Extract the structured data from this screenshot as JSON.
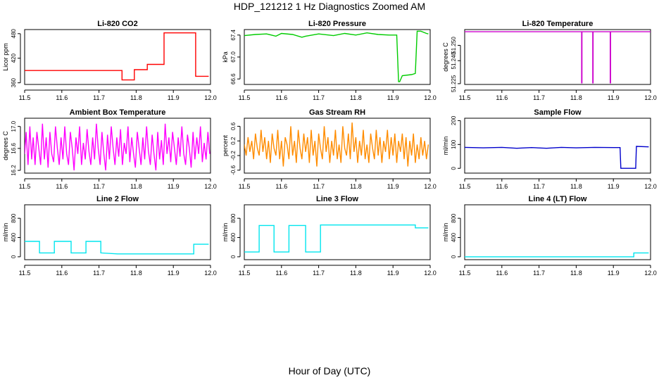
{
  "figure": {
    "title": "HDP_121212  1 Hz Diagnostics Zoomed AM",
    "xlabel": "Hour of Day (UTC)"
  },
  "chart_data": [
    {
      "type": "line",
      "title": "Li-820 CO2",
      "ylabel": "Licor ppm",
      "color": "#ff0000",
      "xlim": [
        11.5,
        12.0
      ],
      "ylim": [
        356,
        490
      ],
      "yticks": [
        "360",
        "420",
        "480"
      ],
      "ytick_values": [
        360,
        420,
        480
      ],
      "xticks": [
        "11.5",
        "11.6",
        "11.7",
        "11.8",
        "11.9",
        "12.0"
      ],
      "xtick_values": [
        11.5,
        11.6,
        11.7,
        11.8,
        11.9,
        12.0
      ],
      "series": [
        {
          "x": [
            11.5,
            11.762,
            11.762,
            11.795,
            11.795,
            11.83,
            11.83,
            11.875,
            11.875,
            11.96,
            11.96,
            11.995
          ],
          "y": [
            390,
            390,
            367,
            367,
            392,
            392,
            405,
            405,
            482,
            482,
            376,
            376
          ]
        }
      ]
    },
    {
      "type": "line",
      "title": "Li-820 Pressure",
      "ylabel": "kPa",
      "color": "#00cc00",
      "xlim": [
        11.5,
        12.0
      ],
      "ylim": [
        66.5,
        67.5
      ],
      "yticks": [
        "66.6",
        "67.0",
        "67.4"
      ],
      "ytick_values": [
        66.6,
        67.0,
        67.4
      ],
      "xticks": [
        "11.5",
        "11.6",
        "11.7",
        "11.8",
        "11.9",
        "12.0"
      ],
      "xtick_values": [
        11.5,
        11.6,
        11.7,
        11.8,
        11.9,
        12.0
      ],
      "series": [
        {
          "x": [
            11.5,
            11.53,
            11.56,
            11.585,
            11.6,
            11.63,
            11.655,
            11.665,
            11.7,
            11.74,
            11.77,
            11.8,
            11.83,
            11.86,
            11.89,
            11.91,
            11.915,
            11.918,
            11.925,
            11.95,
            11.96,
            11.965,
            11.975,
            11.99,
            11.995
          ],
          "y": [
            67.39,
            67.41,
            67.42,
            67.38,
            67.43,
            67.41,
            67.36,
            67.38,
            67.42,
            67.39,
            67.43,
            67.4,
            67.44,
            67.41,
            67.4,
            67.4,
            66.55,
            66.55,
            66.66,
            66.68,
            66.7,
            67.47,
            67.47,
            67.43,
            67.42
          ]
        }
      ]
    },
    {
      "type": "line",
      "title": "Li-820 Temperature",
      "ylabel": "degrees C",
      "color": "#cc00cc",
      "xlim": [
        11.5,
        12.0
      ],
      "ylim": [
        51.2245,
        51.2603
      ],
      "yticks": [
        "51.225",
        "51.240",
        "51.250"
      ],
      "ytick_values": [
        51.225,
        51.24,
        51.25
      ],
      "xticks": [
        "11.5",
        "11.6",
        "11.7",
        "11.8",
        "11.9",
        "12.0"
      ],
      "xtick_values": [
        11.5,
        11.6,
        11.7,
        11.8,
        11.9,
        12.0
      ],
      "series": [
        {
          "x": [
            11.5,
            11.8145,
            11.8145,
            11.8155,
            11.8155,
            11.8445,
            11.8445,
            11.8455,
            11.8455,
            11.8915,
            11.8915,
            11.8925,
            11.8925,
            12.0
          ],
          "y": [
            51.2589,
            51.2589,
            51.2255,
            51.2255,
            51.2589,
            51.2589,
            51.2255,
            51.2255,
            51.2589,
            51.2589,
            51.2255,
            51.2255,
            51.2589,
            51.2589
          ]
        }
      ]
    },
    {
      "type": "line",
      "title": "Ambient Box Temperature",
      "ylabel": "degrees C",
      "color": "#ff00ff",
      "xlim": [
        11.5,
        12.0
      ],
      "ylim": [
        16.15,
        17.15
      ],
      "yticks": [
        "16.2",
        "16.6",
        "17.0"
      ],
      "ytick_values": [
        16.2,
        16.6,
        17.0
      ],
      "xticks": [
        "11.5",
        "11.6",
        "11.7",
        "11.8",
        "11.9",
        "12.0"
      ],
      "xtick_values": [
        11.5,
        11.6,
        11.7,
        11.8,
        11.9,
        12.0
      ],
      "series": [
        {
          "x": [
            11.5,
            11.504,
            11.509,
            11.514,
            11.519,
            11.523,
            11.528,
            11.533,
            11.538,
            11.543,
            11.548,
            11.553,
            11.558,
            11.563,
            11.568,
            11.573,
            11.578,
            11.583,
            11.588,
            11.593,
            11.598,
            11.603,
            11.608,
            11.613,
            11.618,
            11.623,
            11.628,
            11.633,
            11.638,
            11.643,
            11.648,
            11.653,
            11.658,
            11.663,
            11.668,
            11.673,
            11.678,
            11.683,
            11.688,
            11.693,
            11.698,
            11.703,
            11.708,
            11.713,
            11.718,
            11.723,
            11.728,
            11.733,
            11.738,
            11.743,
            11.748,
            11.753,
            11.758,
            11.763,
            11.768,
            11.773,
            11.778,
            11.783,
            11.788,
            11.793,
            11.798,
            11.803,
            11.808,
            11.813,
            11.818,
            11.823,
            11.828,
            11.833,
            11.838,
            11.843,
            11.848,
            11.853,
            11.858,
            11.863,
            11.868,
            11.873,
            11.878,
            11.883,
            11.888,
            11.893,
            11.898,
            11.903,
            11.908,
            11.913,
            11.918,
            11.923,
            11.928,
            11.933,
            11.938,
            11.943,
            11.948,
            11.953,
            11.958,
            11.963,
            11.968,
            11.973,
            11.978,
            11.983,
            11.988,
            11.993,
            11.998
          ],
          "y": [
            16.5,
            16.9,
            16.3,
            17.0,
            16.4,
            16.8,
            16.3,
            16.9,
            16.6,
            16.3,
            17.05,
            16.4,
            16.8,
            16.25,
            16.9,
            16.5,
            16.35,
            17.0,
            16.6,
            16.3,
            16.8,
            16.4,
            17.0,
            16.5,
            16.3,
            16.9,
            16.6,
            16.2,
            16.8,
            16.5,
            17.0,
            16.3,
            16.7,
            16.4,
            16.95,
            16.55,
            16.3,
            16.8,
            16.4,
            17.05,
            16.6,
            16.3,
            16.9,
            16.5,
            16.2,
            16.85,
            16.4,
            17.0,
            16.6,
            16.3,
            16.8,
            16.45,
            16.95,
            16.3,
            16.7,
            16.5,
            17.0,
            16.35,
            16.8,
            16.5,
            16.25,
            16.9,
            16.6,
            16.3,
            16.8,
            16.4,
            17.0,
            16.55,
            16.3,
            16.85,
            16.5,
            16.2,
            16.9,
            16.4,
            16.75,
            16.3,
            17.05,
            16.5,
            16.8,
            16.35,
            16.9,
            16.6,
            16.3,
            16.8,
            16.45,
            17.0,
            16.5,
            16.3,
            16.85,
            16.6,
            16.25,
            16.9,
            16.4,
            16.8,
            16.5,
            17.0,
            16.35,
            16.7,
            16.4,
            16.9,
            16.5
          ]
        }
      ]
    },
    {
      "type": "line",
      "title": "Gas Stream RH",
      "ylabel": "percent",
      "color": "#ff8c00",
      "xlim": [
        11.5,
        12.0
      ],
      "ylim": [
        -0.68,
        0.82
      ],
      "yticks": [
        "-0.6",
        "-0.2",
        "0.2",
        "0.6"
      ],
      "ytick_values": [
        -0.6,
        -0.2,
        0.2,
        0.6
      ],
      "xticks": [
        "11.5",
        "11.6",
        "11.7",
        "11.8",
        "11.9",
        "12.0"
      ],
      "xtick_values": [
        11.5,
        11.6,
        11.7,
        11.8,
        11.9,
        12.0
      ],
      "series": [
        {
          "x": [
            11.5,
            11.505,
            11.51,
            11.515,
            11.52,
            11.525,
            11.53,
            11.535,
            11.54,
            11.545,
            11.55,
            11.555,
            11.56,
            11.565,
            11.57,
            11.575,
            11.58,
            11.585,
            11.59,
            11.595,
            11.6,
            11.605,
            11.61,
            11.615,
            11.62,
            11.625,
            11.63,
            11.635,
            11.64,
            11.645,
            11.65,
            11.655,
            11.66,
            11.665,
            11.67,
            11.675,
            11.68,
            11.685,
            11.69,
            11.695,
            11.7,
            11.705,
            11.71,
            11.715,
            11.72,
            11.725,
            11.73,
            11.735,
            11.74,
            11.745,
            11.75,
            11.755,
            11.76,
            11.765,
            11.77,
            11.775,
            11.78,
            11.785,
            11.79,
            11.795,
            11.8,
            11.805,
            11.81,
            11.815,
            11.82,
            11.825,
            11.83,
            11.835,
            11.84,
            11.845,
            11.85,
            11.855,
            11.86,
            11.865,
            11.87,
            11.875,
            11.88,
            11.885,
            11.89,
            11.895,
            11.9,
            11.905,
            11.91,
            11.915,
            11.92,
            11.925,
            11.93,
            11.935,
            11.94,
            11.945,
            11.95,
            11.955,
            11.96,
            11.965,
            11.97,
            11.975,
            11.98,
            11.985,
            11.99,
            11.995
          ],
          "y": [
            0.1,
            -0.2,
            0.3,
            -0.1,
            0.2,
            -0.3,
            0.4,
            0.0,
            -0.2,
            0.5,
            -0.1,
            0.3,
            -0.3,
            0.2,
            -0.4,
            0.4,
            0.0,
            -0.2,
            0.5,
            -0.3,
            0.2,
            -0.5,
            0.3,
            0.1,
            -0.3,
            0.6,
            -0.2,
            0.2,
            -0.4,
            0.5,
            0.0,
            -0.3,
            0.4,
            -0.1,
            0.3,
            -0.4,
            0.5,
            -0.2,
            0.2,
            -0.5,
            0.4,
            0.0,
            -0.3,
            0.6,
            -0.1,
            0.3,
            -0.4,
            0.2,
            -0.2,
            0.5,
            -0.3,
            0.1,
            -0.4,
            0.6,
            0.0,
            -0.2,
            0.4,
            -0.3,
            0.7,
            -0.1,
            0.3,
            -0.4,
            0.2,
            -0.2,
            0.5,
            -0.3,
            0.1,
            -0.4,
            0.4,
            0.0,
            -0.3,
            0.5,
            -0.2,
            0.3,
            -0.4,
            0.2,
            -0.1,
            0.5,
            -0.3,
            0.3,
            -0.2,
            0.4,
            -0.4,
            0.2,
            -0.1,
            0.4,
            -0.3,
            0.3,
            -0.5,
            0.2,
            -0.2,
            0.4,
            -0.4,
            0.1,
            -0.3,
            0.3,
            -0.2,
            0.2,
            -0.3,
            0.1
          ]
        }
      ]
    },
    {
      "type": "line",
      "title": "Sample Flow",
      "ylabel": "ml/min",
      "color": "#0000cc",
      "xlim": [
        11.5,
        12.0
      ],
      "ylim": [
        -20,
        210
      ],
      "yticks": [
        "0",
        "100",
        "200"
      ],
      "ytick_values": [
        0,
        100,
        200
      ],
      "xticks": [
        "11.5",
        "11.6",
        "11.7",
        "11.8",
        "11.9",
        "12.0"
      ],
      "xtick_values": [
        11.5,
        11.6,
        11.7,
        11.8,
        11.9,
        12.0
      ],
      "series": [
        {
          "x": [
            11.5,
            11.55,
            11.6,
            11.64,
            11.68,
            11.72,
            11.76,
            11.8,
            11.85,
            11.9,
            11.918,
            11.92,
            11.96,
            11.962,
            11.995
          ],
          "y": [
            88,
            86,
            88,
            84,
            87,
            84,
            88,
            86,
            88,
            87,
            87,
            0,
            0,
            92,
            90
          ]
        }
      ]
    },
    {
      "type": "line",
      "title": "Line 2 Flow",
      "ylabel": "ml/min",
      "color": "#00e5ee",
      "xlim": [
        11.5,
        12.0
      ],
      "ylim": [
        -60,
        1080
      ],
      "yticks": [
        "0",
        "400",
        "800"
      ],
      "ytick_values": [
        0,
        400,
        800
      ],
      "xticks": [
        "11.5",
        "11.6",
        "11.7",
        "11.8",
        "11.9",
        "12.0"
      ],
      "xtick_values": [
        11.5,
        11.6,
        11.7,
        11.8,
        11.9,
        12.0
      ],
      "series": [
        {
          "x": [
            11.5,
            11.54,
            11.54,
            11.58,
            11.58,
            11.625,
            11.625,
            11.665,
            11.665,
            11.705,
            11.705,
            11.75,
            11.955,
            11.955,
            11.995
          ],
          "y": [
            320,
            320,
            80,
            80,
            320,
            320,
            80,
            80,
            320,
            320,
            80,
            60,
            60,
            260,
            260
          ]
        }
      ]
    },
    {
      "type": "line",
      "title": "Line 3 Flow",
      "ylabel": "ml/min",
      "color": "#00e5ee",
      "xlim": [
        11.5,
        12.0
      ],
      "ylim": [
        -60,
        1080
      ],
      "yticks": [
        "0",
        "400",
        "800"
      ],
      "ytick_values": [
        0,
        400,
        800
      ],
      "xticks": [
        "11.5",
        "11.6",
        "11.7",
        "11.8",
        "11.9",
        "12.0"
      ],
      "xtick_values": [
        11.5,
        11.6,
        11.7,
        11.8,
        11.9,
        12.0
      ],
      "series": [
        {
          "x": [
            11.5,
            11.54,
            11.54,
            11.58,
            11.58,
            11.62,
            11.62,
            11.665,
            11.665,
            11.705,
            11.705,
            11.96,
            11.96,
            11.995
          ],
          "y": [
            100,
            100,
            650,
            650,
            100,
            100,
            650,
            650,
            100,
            100,
            660,
            660,
            600,
            600
          ]
        }
      ]
    },
    {
      "type": "line",
      "title": "Line 4 (LT) Flow",
      "ylabel": "ml/min",
      "color": "#00e5ee",
      "xlim": [
        11.5,
        12.0
      ],
      "ylim": [
        -60,
        1080
      ],
      "yticks": [
        "0",
        "400",
        "800"
      ],
      "ytick_values": [
        0,
        400,
        800
      ],
      "xticks": [
        "11.5",
        "11.6",
        "11.7",
        "11.8",
        "11.9",
        "12.0"
      ],
      "xtick_values": [
        11.5,
        11.6,
        11.7,
        11.8,
        11.9,
        12.0
      ],
      "series": [
        {
          "x": [
            11.5,
            11.955,
            11.955,
            11.995
          ],
          "y": [
            0,
            0,
            80,
            80
          ]
        }
      ]
    }
  ]
}
